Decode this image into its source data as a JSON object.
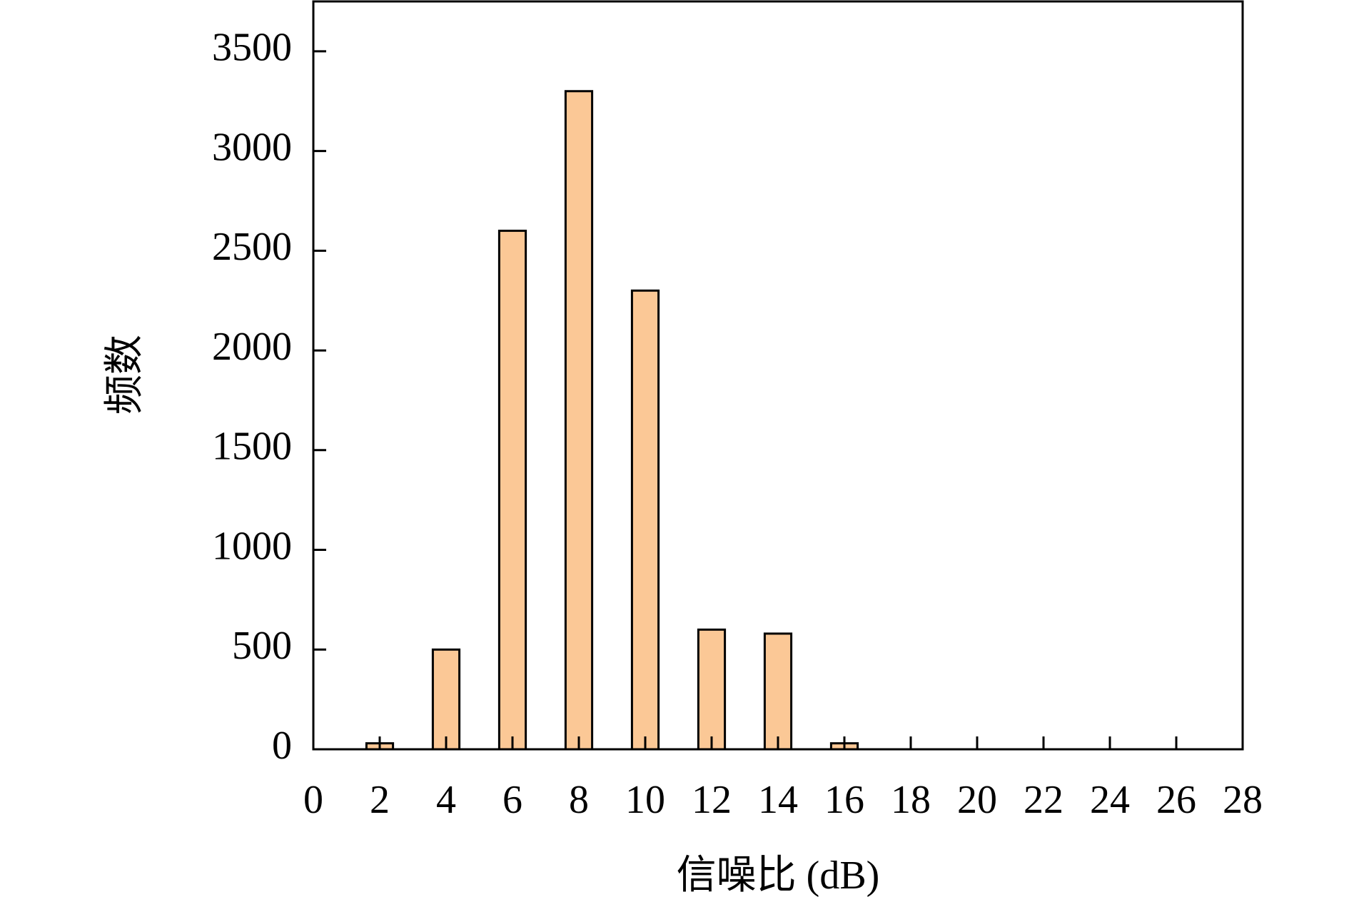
{
  "chart_data": {
    "type": "bar",
    "x_label": "信噪比 (dB)",
    "y_label": "频数",
    "x": [
      2,
      4,
      6,
      8,
      10,
      12,
      14,
      16
    ],
    "values": [
      30,
      500,
      2600,
      3300,
      2300,
      600,
      580,
      30
    ],
    "color": "#fbc896",
    "xlim": [
      0,
      28
    ],
    "xticks": [
      0,
      2,
      4,
      6,
      8,
      10,
      12,
      14,
      16,
      18,
      20,
      22,
      24,
      26,
      28
    ],
    "ylim": [
      0,
      3750
    ],
    "yticks": [
      0,
      500,
      1000,
      1500,
      2000,
      2500,
      3000,
      3500
    ]
  }
}
